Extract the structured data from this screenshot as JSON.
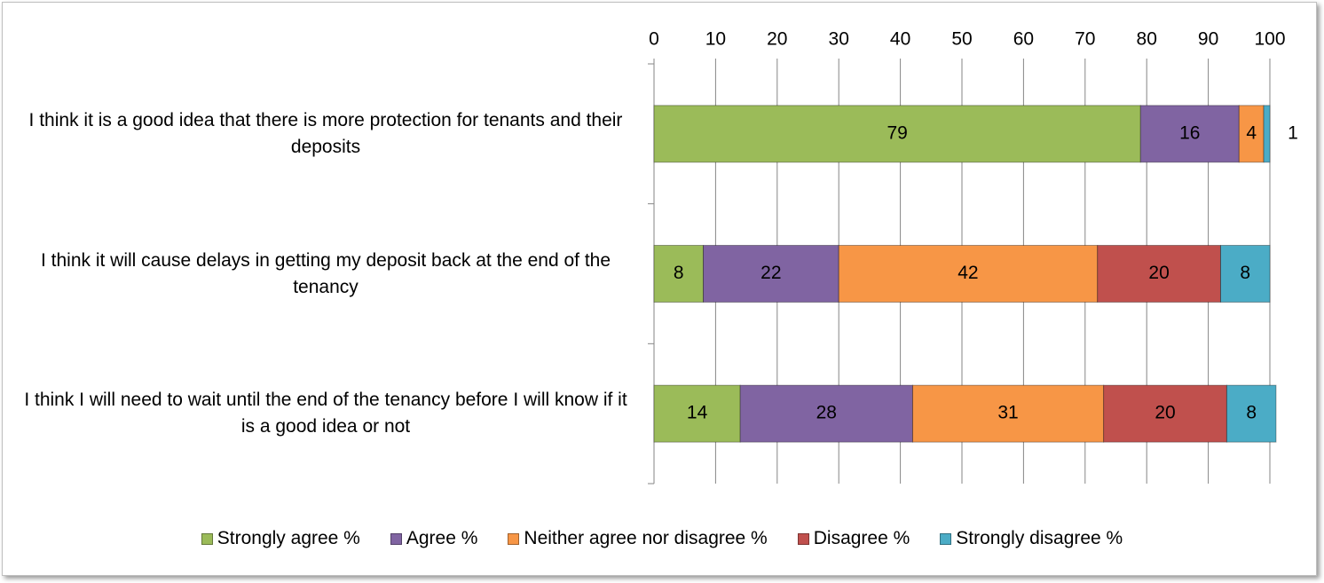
{
  "chart_data": {
    "type": "stacked-bar-horizontal",
    "categories": [
      "I think it is a good idea that there is more protection for tenants and their deposits",
      "I think it will cause delays in getting my deposit back at the end of the tenancy",
      "I think I will need to wait until the end of the tenancy before I will know if it is a good idea or not"
    ],
    "series": [
      {
        "name": "Strongly agree %",
        "color": "#9bbb59",
        "values": [
          79,
          8,
          14
        ]
      },
      {
        "name": "Agree %",
        "color": "#8064a2",
        "values": [
          16,
          22,
          28
        ]
      },
      {
        "name": "Neither agree nor disagree %",
        "color": "#f79646",
        "values": [
          4,
          42,
          31
        ]
      },
      {
        "name": "Disagree %",
        "color": "#c0504d",
        "values": [
          null,
          20,
          20
        ]
      },
      {
        "name": "Strongly disagree %",
        "color": "#4bacc6",
        "values": [
          1,
          8,
          8
        ]
      }
    ],
    "xlim": [
      0,
      100
    ],
    "xticks": [
      0,
      10,
      20,
      30,
      40,
      50,
      60,
      70,
      80,
      90,
      100
    ],
    "grid": true,
    "legend": "bottom"
  }
}
